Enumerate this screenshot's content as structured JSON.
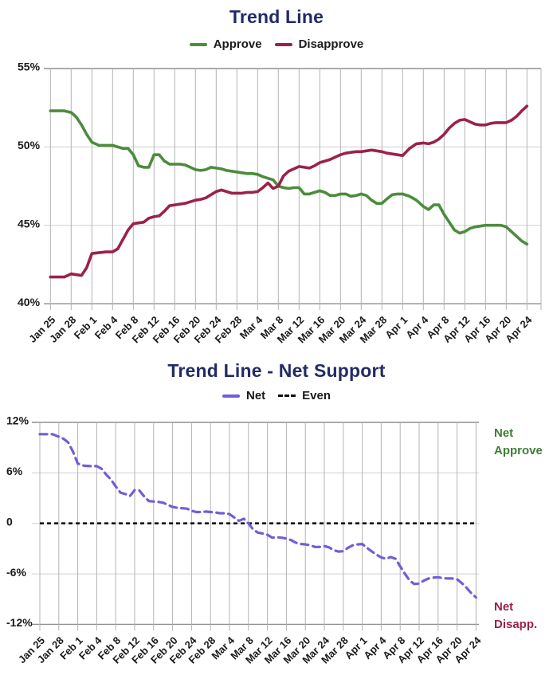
{
  "colors": {
    "title": "#232b66",
    "approve": "#4c8c3c",
    "disapprove": "#9b2247",
    "net": "#6f5fd8",
    "even": "#111111",
    "net_approve_label": "#3e7d35",
    "net_disapprove_label": "#9b2247",
    "text": "#1a1a1a",
    "grid": "#cfcfcf",
    "grid_vertical": "#b3b3b3",
    "axis_border": "#8f8f8f"
  },
  "net_chart": {
    "right_labels": {
      "approve_line1": "Net",
      "approve_line2": "Approve",
      "disapprove_line1": "Net",
      "disapprove_line2": "Disapp."
    }
  },
  "chart_data": [
    {
      "type": "line",
      "title": "Trend Line",
      "x_tick_labels": [
        "Jan 25",
        "Jan 28",
        "Feb 1",
        "Feb 4",
        "Feb 8",
        "Feb 12",
        "Feb 16",
        "Feb 20",
        "Feb 24",
        "Feb 28",
        "Mar 4",
        "Mar 8",
        "Mar 12",
        "Mar 16",
        "Mar 20",
        "Mar 24",
        "Mar 28",
        "Apr 1",
        "Apr 4",
        "Apr 8",
        "Apr 12",
        "Apr 16",
        "Apr 20",
        "Apr 24"
      ],
      "tick_day_offsets": [
        0,
        3,
        7,
        10,
        14,
        18,
        22,
        26,
        30,
        34,
        38,
        42,
        46,
        50,
        54,
        58,
        62,
        66,
        69,
        73,
        77,
        81,
        85,
        89
      ],
      "x_start_date": "Jan 25",
      "x_end_date": "Apr 24",
      "points_cadence": "daily",
      "ylim": [
        40,
        55
      ],
      "y_ticks": [
        55,
        50,
        45,
        40
      ],
      "y_tick_labels": [
        "55%",
        "50%",
        "45%",
        "40%"
      ],
      "grid": true,
      "legend_position": "top-center",
      "series": [
        {
          "name": "Approve",
          "color": "#4c8c3c",
          "width": 3.6,
          "values": [
            52.3,
            52.3,
            52.3,
            52.2,
            51.9,
            51.4,
            50.8,
            50.3,
            50.1,
            50.1,
            50.1,
            50.0,
            49.9,
            49.9,
            49.5,
            48.8,
            48.7,
            48.7,
            49.5,
            49.5,
            49.1,
            48.9,
            48.9,
            48.9,
            48.85,
            48.7,
            48.55,
            48.5,
            48.55,
            48.7,
            48.65,
            48.6,
            48.5,
            48.45,
            48.4,
            48.35,
            48.3,
            48.3,
            48.25,
            48.1,
            48.0,
            47.9,
            47.5,
            47.4,
            47.35,
            47.4,
            47.4,
            47.0,
            47.0,
            47.1,
            47.2,
            47.1,
            46.9,
            46.9,
            47.0,
            47.0,
            46.85,
            46.9,
            47.0,
            46.9,
            46.6,
            46.4,
            46.4,
            46.7,
            46.95,
            47.0,
            47.0,
            46.85,
            46.6,
            46.2,
            46.0,
            46.3,
            46.3,
            45.7,
            45.2,
            44.7,
            44.5,
            44.6,
            44.8,
            44.9,
            44.95,
            45.0,
            45.0,
            45.0,
            45.0,
            44.9,
            44.6,
            44.3,
            44.0,
            43.8
          ]
        },
        {
          "name": "Disapprove",
          "color": "#9b2247",
          "width": 3.6,
          "values": [
            41.7,
            41.7,
            41.7,
            41.9,
            41.85,
            41.8,
            42.3,
            43.2,
            43.25,
            43.3,
            43.3,
            43.5,
            44.1,
            44.7,
            45.1,
            45.15,
            45.2,
            45.45,
            45.55,
            45.6,
            45.9,
            46.25,
            46.3,
            46.35,
            46.4,
            46.5,
            46.6,
            46.65,
            46.75,
            46.95,
            47.15,
            47.25,
            47.15,
            47.05,
            47.05,
            47.05,
            47.1,
            47.1,
            47.15,
            47.4,
            47.7,
            47.35,
            47.5,
            48.15,
            48.45,
            48.6,
            48.75,
            48.7,
            48.65,
            48.8,
            49.0,
            49.1,
            49.2,
            49.35,
            49.5,
            49.6,
            49.65,
            49.7,
            49.7,
            49.75,
            49.8,
            49.75,
            49.7,
            49.6,
            49.55,
            49.5,
            49.45,
            49.9,
            50.2,
            50.25,
            50.2,
            50.3,
            50.5,
            50.8,
            51.2,
            51.5,
            51.7,
            51.75,
            51.6,
            51.45,
            51.4,
            51.4,
            51.5,
            51.55,
            51.55,
            51.55,
            51.7,
            51.95,
            52.3,
            52.6
          ]
        }
      ]
    },
    {
      "type": "line",
      "title": "Trend Line - Net Support",
      "x_tick_labels": [
        "Jan 25",
        "Jan 28",
        "Feb 1",
        "Feb 4",
        "Feb 8",
        "Feb 12",
        "Feb 16",
        "Feb 20",
        "Feb 24",
        "Feb 28",
        "Mar 4",
        "Mar 8",
        "Mar 12",
        "Mar 16",
        "Mar 20",
        "Mar 24",
        "Mar 28",
        "Apr 1",
        "Apr 4",
        "Apr 8",
        "Apr 12",
        "Apr 16",
        "Apr 20",
        "Apr 24"
      ],
      "tick_day_offsets": [
        0,
        3,
        7,
        10,
        14,
        18,
        22,
        26,
        30,
        34,
        38,
        42,
        46,
        50,
        54,
        58,
        62,
        66,
        69,
        73,
        77,
        81,
        85,
        89
      ],
      "x_start_date": "Jan 25",
      "x_end_date": "Apr 24",
      "points_cadence": "daily",
      "ylim": [
        -12,
        12
      ],
      "y_ticks": [
        12,
        6,
        0,
        -6,
        -12
      ],
      "y_tick_labels": [
        "12%",
        "6%",
        "0",
        "-6%",
        "-12%"
      ],
      "grid": true,
      "legend_position": "top-center",
      "annotations": [
        "Net Approve (upper right, green)",
        "Net Disapp. (lower right, maroon)"
      ],
      "series": [
        {
          "name": "Net",
          "color": "#6f5fd8",
          "width": 3.2,
          "dash": "9 6",
          "values": [
            10.6,
            10.6,
            10.6,
            10.3,
            10.05,
            9.6,
            8.5,
            7.1,
            6.85,
            6.8,
            6.8,
            6.5,
            5.8,
            5.2,
            4.4,
            3.65,
            3.5,
            3.25,
            3.95,
            3.9,
            3.2,
            2.65,
            2.6,
            2.55,
            2.45,
            2.2,
            1.95,
            1.85,
            1.8,
            1.75,
            1.5,
            1.35,
            1.35,
            1.4,
            1.35,
            1.3,
            1.2,
            1.2,
            1.1,
            0.7,
            0.3,
            0.55,
            0.0,
            -0.75,
            -1.1,
            -1.2,
            -1.35,
            -1.7,
            -1.65,
            -1.7,
            -1.8,
            -2.0,
            -2.3,
            -2.45,
            -2.5,
            -2.6,
            -2.8,
            -2.8,
            -2.7,
            -2.85,
            -3.2,
            -3.35,
            -3.3,
            -2.9,
            -2.6,
            -2.5,
            -2.45,
            -3.05,
            -3.6,
            -4.05,
            -4.2,
            -4.0,
            -4.2,
            -5.1,
            -6.0,
            -6.8,
            -7.2,
            -7.15,
            -6.8,
            -6.55,
            -6.45,
            -6.4,
            -6.5,
            -6.55,
            -6.55,
            -6.65,
            -7.1,
            -7.65,
            -8.3,
            -8.8
          ]
        },
        {
          "name": "Even",
          "type": "hline",
          "y": 0,
          "color": "#111111",
          "width": 2.6,
          "dash": "5 4"
        }
      ]
    }
  ]
}
